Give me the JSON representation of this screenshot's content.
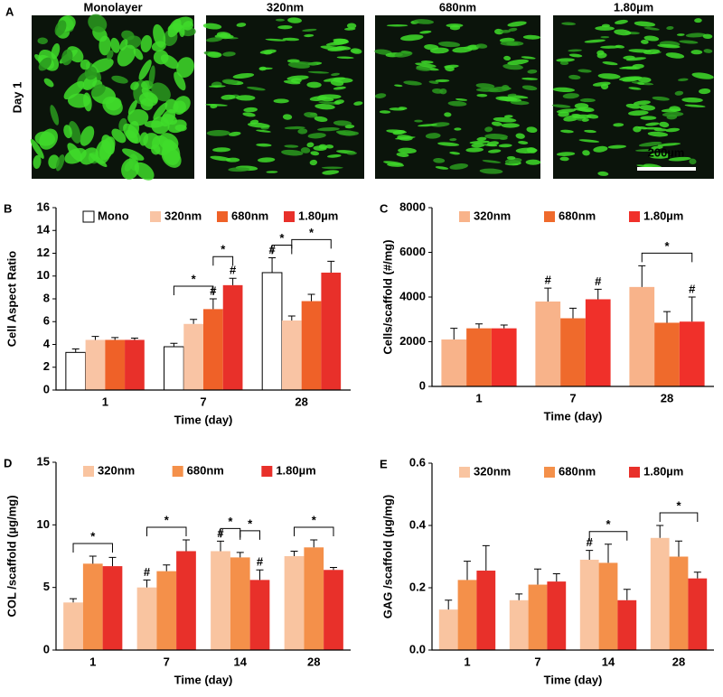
{
  "panel_a": {
    "panel": "A",
    "row_label": "Day 1",
    "columns": [
      "Monolayer",
      "320nm",
      "680nm",
      "1.80µm"
    ],
    "scale_bar": "200µm"
  },
  "chart_data": [
    {
      "type": "bar",
      "panel": "B",
      "y_label": "Cell Aspect Ratio",
      "x_label": "Time (day)",
      "categories": [
        "1",
        "7",
        "28"
      ],
      "ylim": [
        0,
        16
      ],
      "yticks": [
        0,
        2,
        4,
        6,
        8,
        10,
        12,
        14,
        16
      ],
      "legend": "top",
      "series": [
        {
          "name": "Mono",
          "color": "#ffffff",
          "values": [
            3.3,
            3.8,
            10.3
          ],
          "errors": [
            0.3,
            0.3,
            1.3
          ]
        },
        {
          "name": "320nm",
          "color": "#f9c4a4",
          "values": [
            4.4,
            5.8,
            6.1
          ],
          "errors": [
            0.3,
            0.4,
            0.4
          ]
        },
        {
          "name": "680nm",
          "color": "#ef6128",
          "values": [
            4.4,
            7.1,
            7.8
          ],
          "errors": [
            0.2,
            0.9,
            0.6
          ]
        },
        {
          "name": "1.80µm",
          "color": "#e8302a",
          "values": [
            4.4,
            9.2,
            10.3
          ],
          "errors": [
            0.15,
            0.6,
            1.0
          ]
        }
      ],
      "annotations": [
        {
          "text": "#",
          "category": 1,
          "series": [
            2
          ]
        },
        {
          "text": "#",
          "category": 1,
          "series": [
            3
          ]
        },
        {
          "text": "#",
          "category": 2,
          "series": [
            0
          ]
        },
        {
          "text": "*",
          "category": 1,
          "series": [
            0,
            2
          ]
        },
        {
          "text": "*",
          "category": 1,
          "series": [
            2,
            3
          ]
        },
        {
          "text": "*",
          "category": 2,
          "series": [
            0,
            1
          ]
        },
        {
          "text": "*",
          "category": 2,
          "series": [
            1,
            3
          ]
        }
      ]
    },
    {
      "type": "bar",
      "panel": "C",
      "y_label": "Cells/scaffold (#/mg)",
      "x_label": "Time (day)",
      "categories": [
        "1",
        "7",
        "28"
      ],
      "ylim": [
        0,
        8000
      ],
      "yticks": [
        0,
        2000,
        4000,
        6000,
        8000
      ],
      "legend": "top",
      "series": [
        {
          "name": "320nm",
          "color": "#f8b38a",
          "values": [
            2100,
            3800,
            4450
          ],
          "errors": [
            500,
            600,
            950
          ]
        },
        {
          "name": "680nm",
          "color": "#ef6a2c",
          "values": [
            2600,
            3050,
            2850
          ],
          "errors": [
            200,
            450,
            500
          ]
        },
        {
          "name": "1.80µm",
          "color": "#f0302a",
          "values": [
            2600,
            3900,
            2900
          ],
          "errors": [
            150,
            450,
            1100
          ]
        }
      ],
      "annotations": [
        {
          "text": "#",
          "category": 1,
          "series": [
            0
          ]
        },
        {
          "text": "#",
          "category": 1,
          "series": [
            2
          ]
        },
        {
          "text": "#",
          "category": 2,
          "series": [
            2
          ]
        },
        {
          "text": "*",
          "category": 2,
          "series": [
            0,
            2
          ]
        }
      ]
    },
    {
      "type": "bar",
      "panel": "D",
      "y_label": "COL /scaffold (µg/mg)",
      "x_label": "Time (day)",
      "categories": [
        "1",
        "7",
        "14",
        "28"
      ],
      "ylim": [
        0,
        15
      ],
      "yticks": [
        0,
        5,
        10,
        15
      ],
      "legend": "top",
      "series": [
        {
          "name": "320nm",
          "color": "#f9c4a0",
          "values": [
            3.8,
            5.0,
            7.9,
            7.5
          ],
          "errors": [
            0.3,
            0.6,
            0.8,
            0.4
          ]
        },
        {
          "name": "680nm",
          "color": "#f4904a",
          "values": [
            6.9,
            6.3,
            7.4,
            8.2
          ],
          "errors": [
            0.6,
            0.5,
            0.4,
            0.6
          ]
        },
        {
          "name": "1.80µm",
          "color": "#e8302a",
          "values": [
            6.7,
            7.9,
            5.6,
            6.4
          ],
          "errors": [
            0.7,
            0.9,
            0.8,
            0.2
          ]
        }
      ],
      "annotations": [
        {
          "text": "#",
          "category": 1,
          "series": [
            0
          ]
        },
        {
          "text": "#",
          "category": 2,
          "series": [
            0
          ]
        },
        {
          "text": "#",
          "category": 2,
          "series": [
            2
          ]
        },
        {
          "text": "*",
          "category": 0,
          "series": [
            0,
            2
          ]
        },
        {
          "text": "*",
          "category": 1,
          "series": [
            0,
            2
          ]
        },
        {
          "text": "*",
          "category": 2,
          "series": [
            0,
            1
          ]
        },
        {
          "text": "*",
          "category": 2,
          "series": [
            1,
            2
          ]
        },
        {
          "text": "*",
          "category": 3,
          "series": [
            0,
            2
          ]
        }
      ]
    },
    {
      "type": "bar",
      "panel": "E",
      "y_label": "GAG /scaffold (µg/mg)",
      "x_label": "Time (day)",
      "categories": [
        "1",
        "7",
        "14",
        "28"
      ],
      "ylim": [
        0,
        0.6
      ],
      "yticks": [
        {
          "value": 0,
          "label": "0.0"
        },
        0.2,
        0.4,
        0.6
      ],
      "legend": "top",
      "series": [
        {
          "name": "320nm",
          "color": "#f9c4a0",
          "values": [
            0.13,
            0.16,
            0.29,
            0.36
          ],
          "errors": [
            0.03,
            0.02,
            0.03,
            0.04
          ]
        },
        {
          "name": "680nm",
          "color": "#f4904a",
          "values": [
            0.225,
            0.21,
            0.28,
            0.3
          ],
          "errors": [
            0.06,
            0.05,
            0.06,
            0.05
          ]
        },
        {
          "name": "1.80µm",
          "color": "#e8302a",
          "values": [
            0.255,
            0.22,
            0.16,
            0.23
          ],
          "errors": [
            0.08,
            0.025,
            0.035,
            0.02
          ]
        }
      ],
      "annotations": [
        {
          "text": "#",
          "category": 2,
          "series": [
            0
          ]
        },
        {
          "text": "*",
          "category": 2,
          "series": [
            0,
            2
          ]
        },
        {
          "text": "*",
          "category": 3,
          "series": [
            0,
            2
          ]
        }
      ]
    }
  ]
}
